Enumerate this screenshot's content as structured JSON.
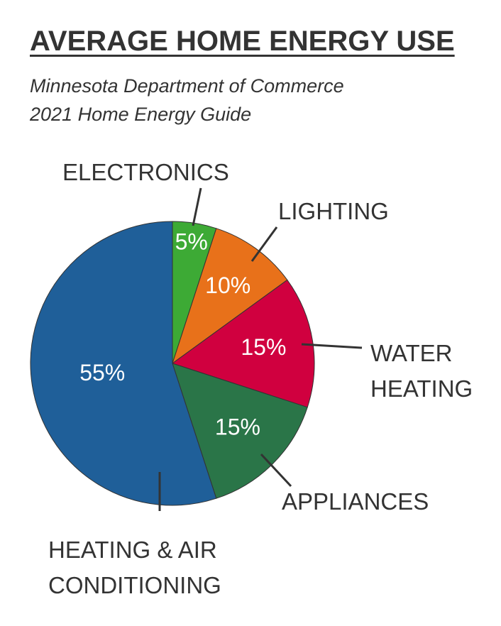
{
  "chart_data": {
    "type": "pie",
    "title": "AVERAGE HOME ENERGY USE",
    "subtitle": [
      "Minnesota Department of Commerce",
      "2021 Home Energy Guide"
    ],
    "categories": [
      "ELECTRONICS",
      "LIGHTING",
      "WATER HEATING",
      "APPLIANCES",
      "HEATING & AIR CONDITIONING"
    ],
    "values": [
      5,
      10,
      15,
      15,
      55
    ],
    "value_labels": [
      "5%",
      "10%",
      "15%",
      "15%",
      "55%"
    ],
    "colors": [
      "#3daa35",
      "#e8711a",
      "#d0003f",
      "#2a7548",
      "#1f5f99"
    ]
  }
}
